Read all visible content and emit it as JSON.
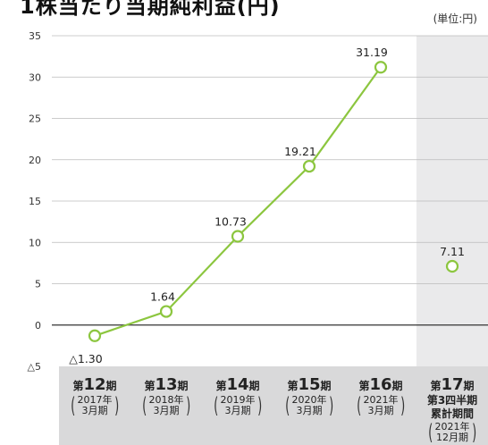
{
  "page": {
    "title": "1株当たり当期純利益(円)",
    "unit": "(単位:円)"
  },
  "colors": {
    "line": "#8cc63f",
    "marker_fill": "#ffffff",
    "grid": "#bbbbbb",
    "zero_line": "#333333",
    "category_band": "#d9d9da",
    "highlight_band": "#eaeaeb"
  },
  "chart_data": {
    "type": "line",
    "categories": [
      "第12期",
      "第13期",
      "第14期",
      "第15期",
      "第16期",
      "第17期"
    ],
    "series": [
      {
        "values": [
          -1.3,
          1.64,
          10.73,
          19.21,
          31.19,
          null
        ]
      }
    ],
    "extra_point": {
      "category": "第17期",
      "value": 7.11
    },
    "data_labels": [
      "△1.30",
      "1.64",
      "10.73",
      "19.21",
      "31.19",
      "7.11"
    ],
    "ylim": [
      -5,
      35
    ],
    "yticks": [
      35,
      30,
      25,
      20,
      15,
      10,
      5,
      0,
      -5
    ],
    "ytick_labels": [
      "35",
      "30",
      "25",
      "20",
      "15",
      "10",
      "5",
      "0",
      "△5"
    ],
    "grid": true,
    "xlabel": "",
    "ylabel": ""
  },
  "categories": [
    {
      "pre": "第",
      "num": "12",
      "post": "期",
      "sub1": "2017年",
      "sub2": "3月期",
      "extra": []
    },
    {
      "pre": "第",
      "num": "13",
      "post": "期",
      "sub1": "2018年",
      "sub2": "3月期",
      "extra": []
    },
    {
      "pre": "第",
      "num": "14",
      "post": "期",
      "sub1": "2019年",
      "sub2": "3月期",
      "extra": []
    },
    {
      "pre": "第",
      "num": "15",
      "post": "期",
      "sub1": "2020年",
      "sub2": "3月期",
      "extra": []
    },
    {
      "pre": "第",
      "num": "16",
      "post": "期",
      "sub1": "2021年",
      "sub2": "3月期",
      "extra": []
    },
    {
      "pre": "第",
      "num": "17",
      "post": "期",
      "sub1": "2021年",
      "sub2": "12月期",
      "extra": [
        "第3四半期",
        "累計期間"
      ]
    }
  ]
}
